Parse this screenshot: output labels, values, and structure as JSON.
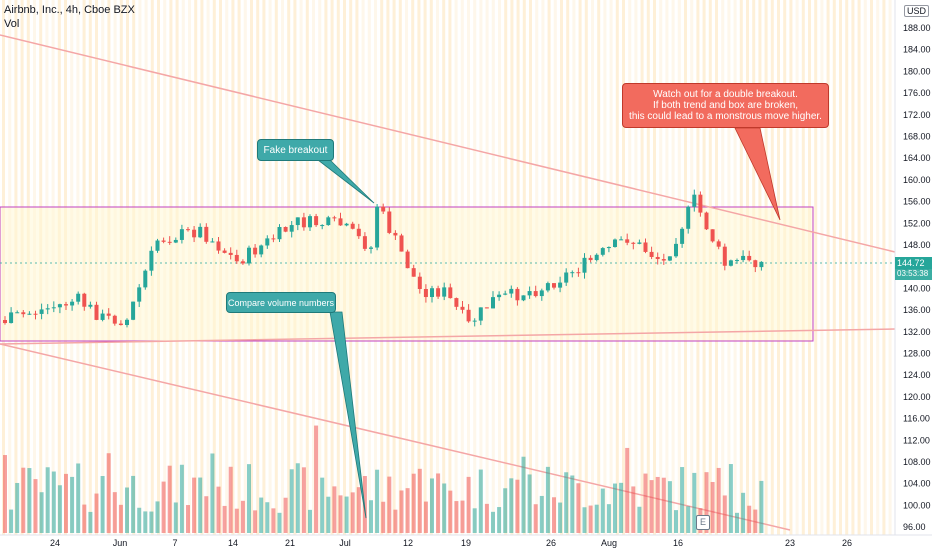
{
  "header": {
    "title": "Airbnb, Inc., 4h, Cboe BZX",
    "indicator": "Vol"
  },
  "currency": "USD",
  "price_axis": {
    "labels": [
      "188.00",
      "184.00",
      "180.00",
      "176.00",
      "172.00",
      "168.00",
      "164.00",
      "160.00",
      "156.00",
      "152.00",
      "148.00",
      "144.00",
      "140.00",
      "136.00",
      "132.00",
      "128.00",
      "124.00",
      "120.00",
      "116.00",
      "112.00",
      "108.00",
      "104.00",
      "100.00",
      "96.00"
    ],
    "top_partial": "1..00"
  },
  "last_price": {
    "value": "144.72",
    "countdown": "03:53:38",
    "color": "#26a69a"
  },
  "time_axis": {
    "labels": [
      "24",
      "Jun",
      "7",
      "14",
      "21",
      "Jul",
      "12",
      "19",
      "26",
      "Aug",
      "16",
      "23",
      "26"
    ]
  },
  "annotations": {
    "fake_breakout": "Fake breakout",
    "compare_volume": "Compare volume numbers",
    "double_breakout_lines": [
      "Watch out for a double breakout.",
      "If both trend and box are broken,",
      "this could lead to a monstrous move higher."
    ]
  },
  "earnings_badge": "E",
  "colors": {
    "up": "#26a69a",
    "down": "#ef5350",
    "box": "#c040c0",
    "trendline": "#f4a6a6",
    "callout_teal": "#3fa9a9",
    "callout_red": "#f26b5e"
  }
}
